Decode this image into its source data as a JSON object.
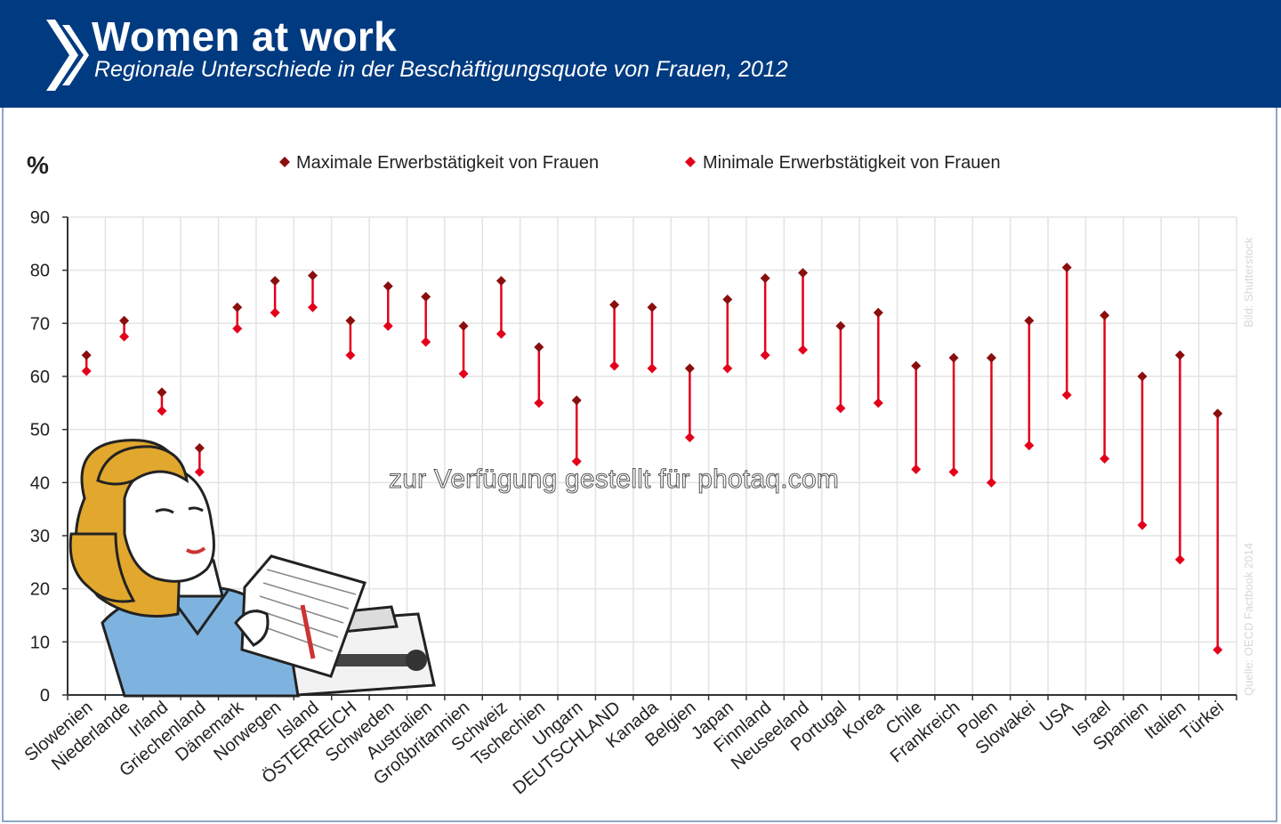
{
  "header": {
    "title": "Women at work",
    "subtitle": "Regionale Unterschiede in der Beschäftigungsquote von Frauen, 2012"
  },
  "credits": {
    "image": "Bild: Shutterstock",
    "source": "Quelle: OECD Factbook 2014"
  },
  "watermark": "zur Verfügung gestellt für photaq.com",
  "chart_data": {
    "type": "scatter",
    "ylabel": "%",
    "ylim": [
      0,
      90
    ],
    "yticks": [
      0,
      10,
      20,
      30,
      40,
      50,
      60,
      70,
      80,
      90
    ],
    "grid": true,
    "legend_position": "top",
    "categories": [
      "Slowenien",
      "Niederlande",
      "Irland",
      "Griechenland",
      "Dänemark",
      "Norwegen",
      "Island",
      "ÖSTERREICH",
      "Schweden",
      "Australien",
      "Großbritannien",
      "Schweiz",
      "Tschechien",
      "Ungarn",
      "DEUTSCHLAND",
      "Kanada",
      "Belgien",
      "Japan",
      "Finnland",
      "Neuseeland",
      "Portugal",
      "Korea",
      "Chile",
      "Frankreich",
      "Polen",
      "Slowakei",
      "USA",
      "Israel",
      "Spanien",
      "Italien",
      "Türkei"
    ],
    "series": [
      {
        "name": "Maximale Erwerbstätigkeit von Frauen",
        "color": "#8b0e0e",
        "values": [
          64,
          70.5,
          57,
          46.5,
          73,
          78,
          79,
          70.5,
          77,
          75,
          69.5,
          78,
          65.5,
          55.5,
          73.5,
          73,
          61.5,
          74.5,
          78.5,
          79.5,
          69.5,
          72,
          62,
          63.5,
          63.5,
          70.5,
          80.5,
          71.5,
          60,
          64,
          53
        ]
      },
      {
        "name": "Minimale Erwerbstätigkeit von Frauen",
        "color": "#e3001b",
        "values": [
          61,
          67.5,
          53.5,
          42,
          69,
          72,
          73,
          64,
          69.5,
          66.5,
          60.5,
          68,
          55,
          44,
          62,
          61.5,
          48.5,
          61.5,
          64,
          65,
          54,
          55,
          42.5,
          42,
          40,
          47,
          56.5,
          44.5,
          32,
          25.5,
          8.5
        ]
      }
    ]
  }
}
